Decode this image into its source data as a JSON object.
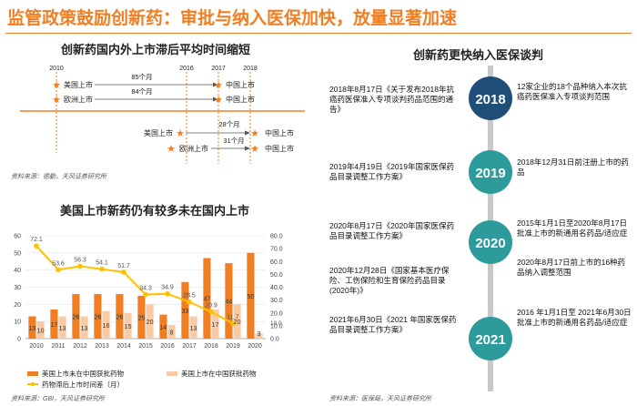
{
  "page": {
    "title": "监管政策鼓励创新药：审批与纳入医保加快，放量显著加速",
    "colors": {
      "accent": "#f07e22",
      "navy": "#1f4e79",
      "teal": "#2d9b9b",
      "grey": "#c9c9c9",
      "gold": "#ffc000",
      "peach": "#f8cba6"
    }
  },
  "timeline_chart": {
    "title": "创新药国内外上市滞后平均时间缩短",
    "years": [
      "2010",
      "2016",
      "2017",
      "2018"
    ],
    "row1": {
      "us": "美国上市",
      "eu": "欧洲上市",
      "cn1": "中国上市",
      "cn2": "中国上市",
      "gap_us": "85个月",
      "gap_eu": "84个月"
    },
    "row2": {
      "us": "美国上市",
      "eu": "欧洲上市",
      "cn1": "中国上市",
      "cn2": "中国上市",
      "gap_us": "28个月",
      "gap_eu": "31个月"
    },
    "source": "资料来源：德勤，天风证券研究所"
  },
  "chart_data": {
    "type": "bar",
    "title": "美国上市新药仍有较多未在国内上市",
    "categories": [
      "2010",
      "2011",
      "2012",
      "2013",
      "2014",
      "2015",
      "2016",
      "2017",
      "2018",
      "2019",
      "2020"
    ],
    "series": [
      {
        "name": "美国上市未在中国获批药物",
        "type": "bar",
        "axis": "left",
        "color": "#f07e22",
        "values": [
          13,
          17,
          26,
          26,
          26,
          25,
          14,
          33,
          47,
          44,
          50
        ]
      },
      {
        "name": "美国上市在中国获批药物",
        "type": "bar",
        "axis": "left",
        "color": "#f8cba6",
        "values": [
          10,
          13,
          13,
          16,
          15,
          20,
          8,
          13,
          17,
          20,
          3
        ]
      },
      {
        "name": "药物滞后上市时间差（月）",
        "type": "line",
        "axis": "right",
        "color": "#ffc000",
        "values": [
          72.1,
          53.6,
          56.3,
          54.1,
          51.7,
          34.3,
          34.9,
          28.5,
          20.9,
          11.7,
          null
        ]
      }
    ],
    "bar_labels_primary": [
      "13",
      "17",
      "26",
      "26",
      "26",
      "25",
      "14",
      "33",
      "47",
      "44",
      "50"
    ],
    "bar_labels_secondary": [
      "10",
      "13",
      "13",
      "16",
      "15",
      "20",
      "8",
      "13",
      "17",
      "20",
      "3"
    ],
    "line_labels": [
      "72.1",
      "53.6",
      "56.3",
      "54.1",
      "51.7",
      "34.3",
      "34.9",
      "28.5",
      "20.9",
      "11.7"
    ],
    "right_end_label": "10.0",
    "ylim_left": [
      0,
      60
    ],
    "yticks_left": [
      "0",
      "10",
      "20",
      "30",
      "40",
      "50",
      "60"
    ],
    "ylim_right": [
      0,
      80
    ],
    "yticks_right": [
      "0.0",
      "10.0",
      "20.0",
      "30.0",
      "40.0",
      "50.0",
      "60.0",
      "70.0",
      "80.0"
    ],
    "legend": [
      "美国上市未在中国获批药物",
      "美国上市在中国获批药物",
      "药物滞后上市时间差（月）"
    ],
    "source": "资料来源：GBI，天风证券研究所"
  },
  "policy_timeline": {
    "title": "创新药更快纳入医保谈判",
    "nodes": [
      {
        "year": "2018",
        "left": "2018年8月17日《关于发布2018年抗癌药医保准入专项谈判药品范围的通告》",
        "right": "12家企业的18个品种纳入本次抗癌药医保准入专项谈判范围"
      },
      {
        "year": "2019",
        "left": "2019年4月19日《2019年国家医保药品目录调整工作方案》",
        "right": "2018年12月31日前注册上市的药品"
      },
      {
        "year": "2020",
        "left": "2020年8月17日《2020年国家医保药品目录调整工作方案》",
        "right": "2015年1月1日至2020年8月17日批准上市的新通用名药品/适应症"
      },
      {
        "year": "2021",
        "left": "2021年6月30日《2021 年国家医保药品目录调整工作方案》",
        "right": "2016 年1月1日至 2021年6月30日批准上市的新通用名药品/适应症"
      }
    ],
    "extra_left": "2020年12月28日《国家基本医疗保险、工伤保险和生育保险药品目录(2020年)》",
    "extra_right": "2020年8月17日前上市的16种药品纳入调整范围",
    "source": "资料来源：医保局，天风证券研究所"
  }
}
